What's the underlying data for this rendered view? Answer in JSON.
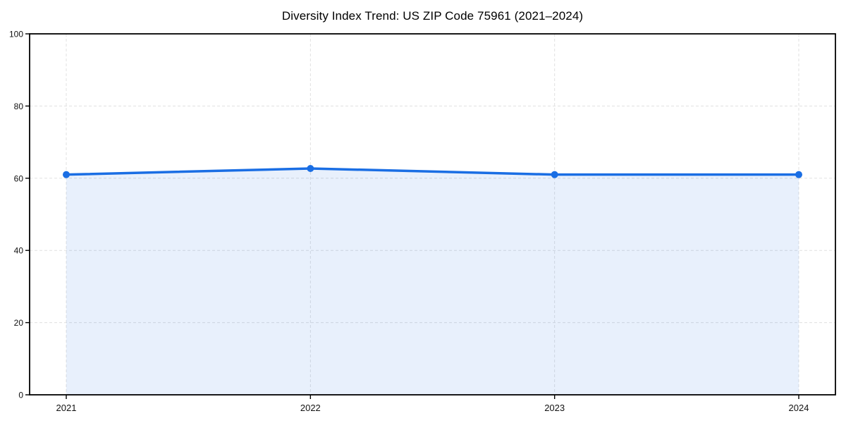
{
  "page": {
    "background": "#ffffff"
  },
  "colors": {
    "line": "#1a6ee4",
    "marker": "#1a6ee4",
    "fill": "#1a6ee4",
    "fill_opacity": 0.1,
    "grid": "#e0e0e0",
    "axis": "#000000",
    "tick_text": "#111111"
  },
  "chart_data": {
    "type": "area",
    "title": "Diversity Index Trend: US ZIP Code 75961 (2021–2024)",
    "categories": [
      "2021",
      "2022",
      "2023",
      "2024"
    ],
    "series": [
      {
        "name": "Diversity Index",
        "values": [
          61,
          62.7,
          61,
          61
        ]
      }
    ],
    "xlabel": "",
    "ylabel": "",
    "ylim": [
      0,
      100
    ],
    "yticks": [
      0,
      20,
      40,
      60,
      80,
      100
    ],
    "grid": true,
    "grid_style": "dashed",
    "legend_position": "none",
    "marker": "circle",
    "fill_under_line": true
  }
}
